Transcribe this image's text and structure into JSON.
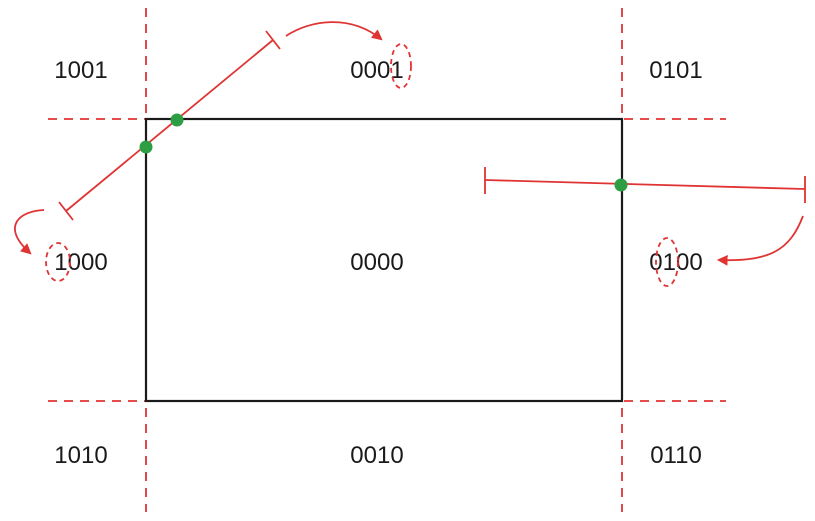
{
  "colors": {
    "background": "#ffffff",
    "window_border": "#1a1a1a",
    "extension_lines": "#e03434",
    "segments": "#e03434",
    "annotations": "#e03434",
    "intersection_points": "#2e9e44",
    "text": "#1a1a1a"
  },
  "region_codes": {
    "top_left": "1001",
    "top_center": "0001",
    "top_right": "0101",
    "middle_left": "1000",
    "middle_center": "0000",
    "middle_right": "0100",
    "bottom_left": "1010",
    "bottom_center": "0010",
    "bottom_right": "0110"
  },
  "icons": {
    "intersection_marker": "green-dot",
    "endpoint_tick": "t-bar",
    "bit_highlight": "dashed-ellipse",
    "pointer": "curved-arrow"
  }
}
